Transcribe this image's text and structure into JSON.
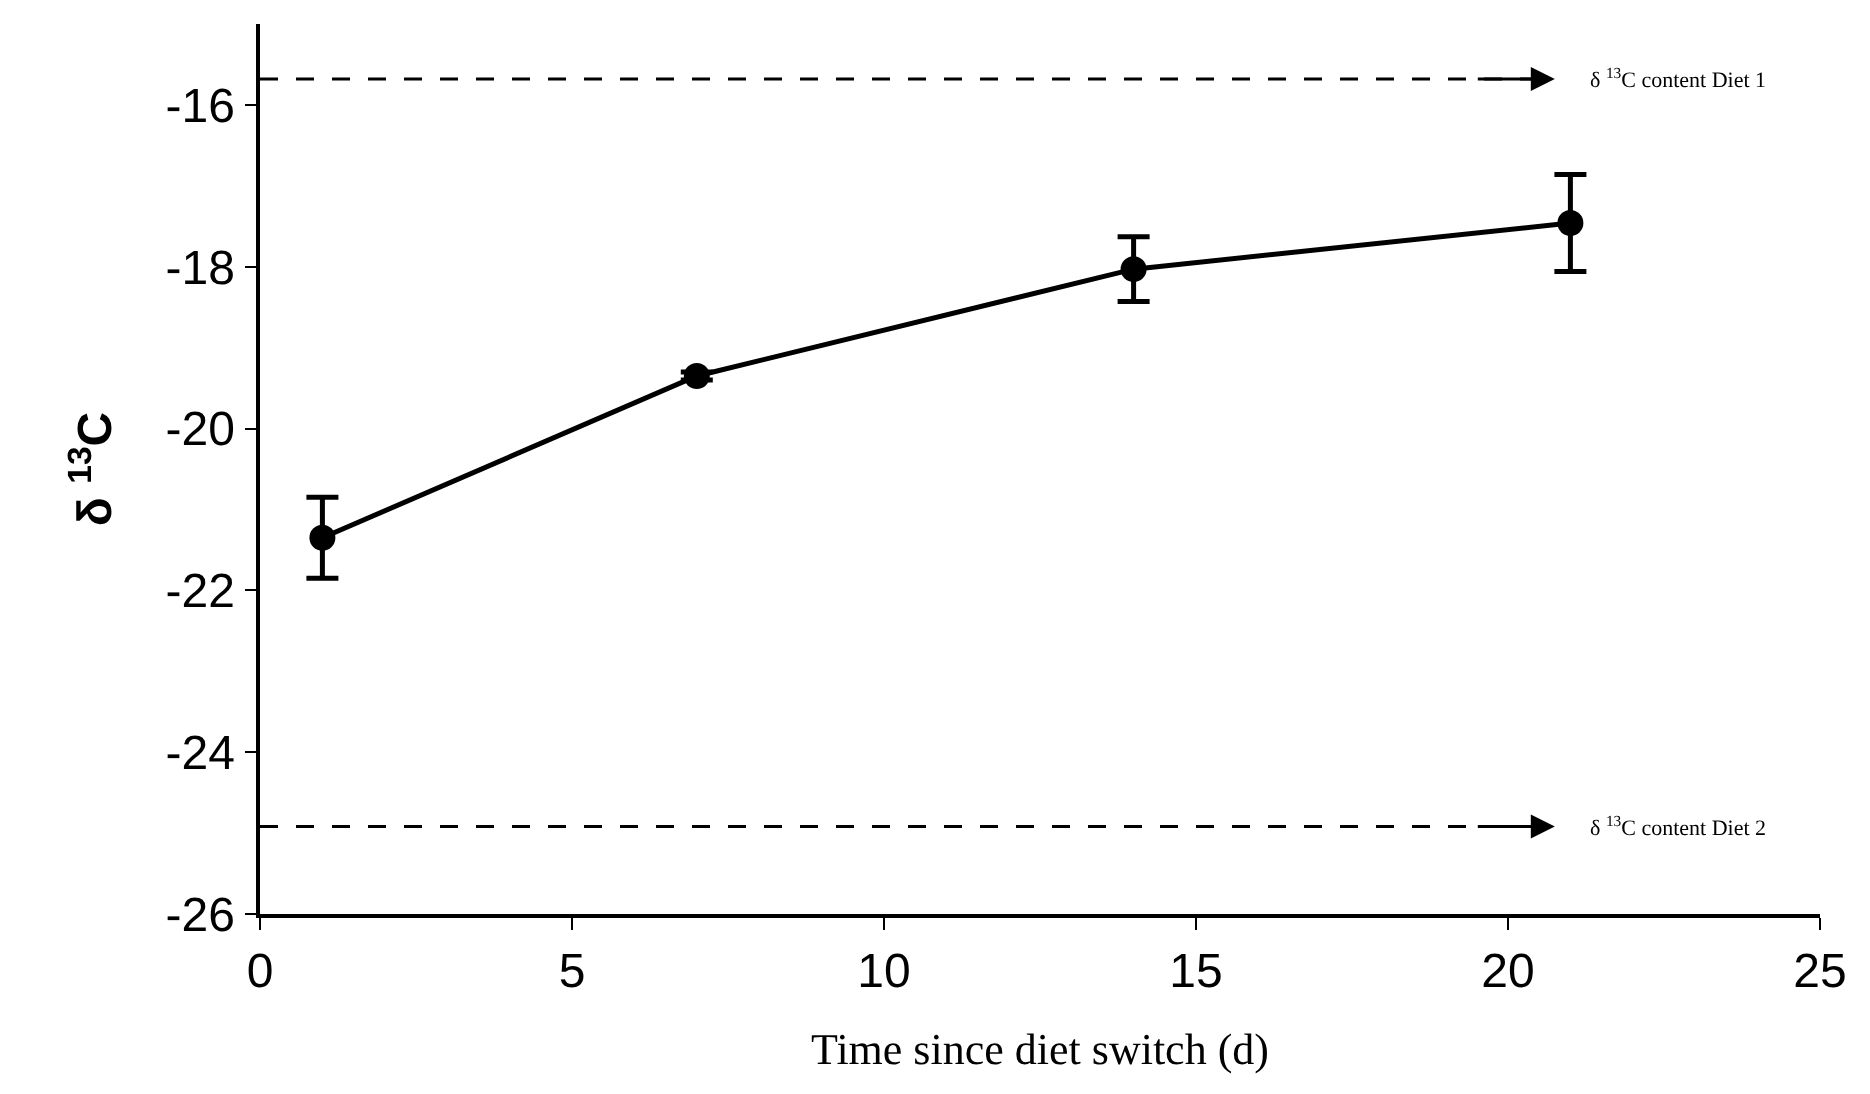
{
  "chart_data": {
    "type": "line",
    "xlabel": "Time since diet switch (d)",
    "ylabel": "δ $^{13}$C",
    "x": [
      1,
      7,
      14,
      21
    ],
    "series": [
      {
        "color": "#000000",
        "values": [
          -21.35,
          -19.35,
          -18.03,
          -17.46
        ],
        "errors": [
          0.5,
          0.05,
          0.4,
          0.6
        ]
      }
    ],
    "xlim": [
      0,
      25
    ],
    "xticks": [
      0,
      5,
      10,
      15,
      20,
      25
    ],
    "ylim": [
      -26,
      -15
    ],
    "yticks": [
      -26,
      -24,
      -22,
      -20,
      -18,
      -16
    ],
    "ref_lines": [
      {
        "axis": "y",
        "value": -15.68,
        "label": "δ $^{13}$C content Diet 1",
        "line_style": "dashed",
        "color": "#000000"
      },
      {
        "axis": "y",
        "value": -24.92,
        "label": "δ $^{13}$C content Diet 2",
        "line_style": "dashed",
        "color": "#000000"
      }
    ],
    "marker": "circle",
    "line_style": "solid"
  }
}
